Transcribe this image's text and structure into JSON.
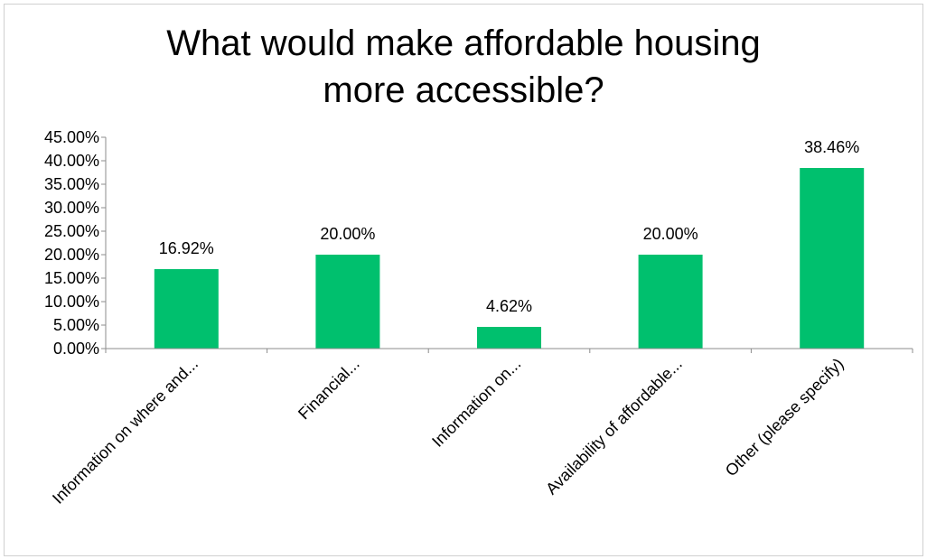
{
  "chart_data": {
    "type": "bar",
    "title_line1": "What would make affordable housing",
    "title_line2": "more accessible?",
    "categories": [
      "Information on where and...",
      "Financial...",
      "Information on...",
      "Availability of affordable...",
      "Other (please specify)"
    ],
    "values": [
      16.92,
      20.0,
      4.62,
      20.0,
      38.46
    ],
    "data_labels": [
      "16.92%",
      "20.00%",
      "4.62%",
      "20.00%",
      "38.46%"
    ],
    "ylim": [
      0,
      45
    ],
    "yticks": [
      0,
      5,
      10,
      15,
      20,
      25,
      30,
      35,
      40,
      45
    ],
    "ytick_labels": [
      "0.00%",
      "5.00%",
      "10.00%",
      "15.00%",
      "20.00%",
      "25.00%",
      "30.00%",
      "35.00%",
      "40.00%",
      "45.00%"
    ],
    "bar_color": "#00C06E",
    "grid": false
  }
}
